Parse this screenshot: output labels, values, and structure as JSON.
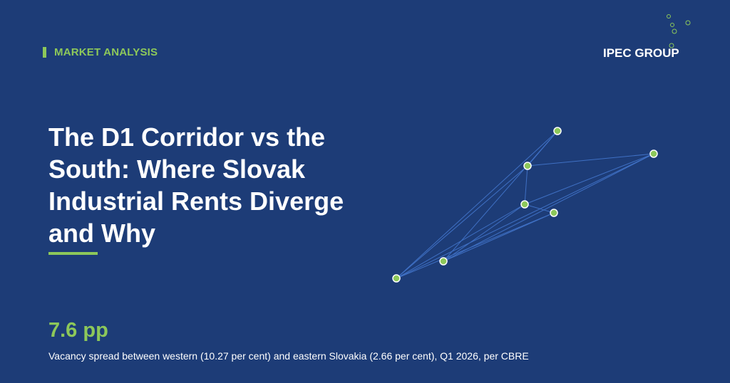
{
  "header": {
    "label": "MARKET ANALYSIS",
    "brand": "IPEC GROUP"
  },
  "title": "The D1 Corridor vs the South: Where Slovak Industrial Rents Diverge and Why",
  "stat": {
    "value": "7.6 pp",
    "description": "Vacancy spread between western (10.27 per cent) and eastern Slovakia (2.66 per cent), Q1 2026, per CBRE"
  }
}
